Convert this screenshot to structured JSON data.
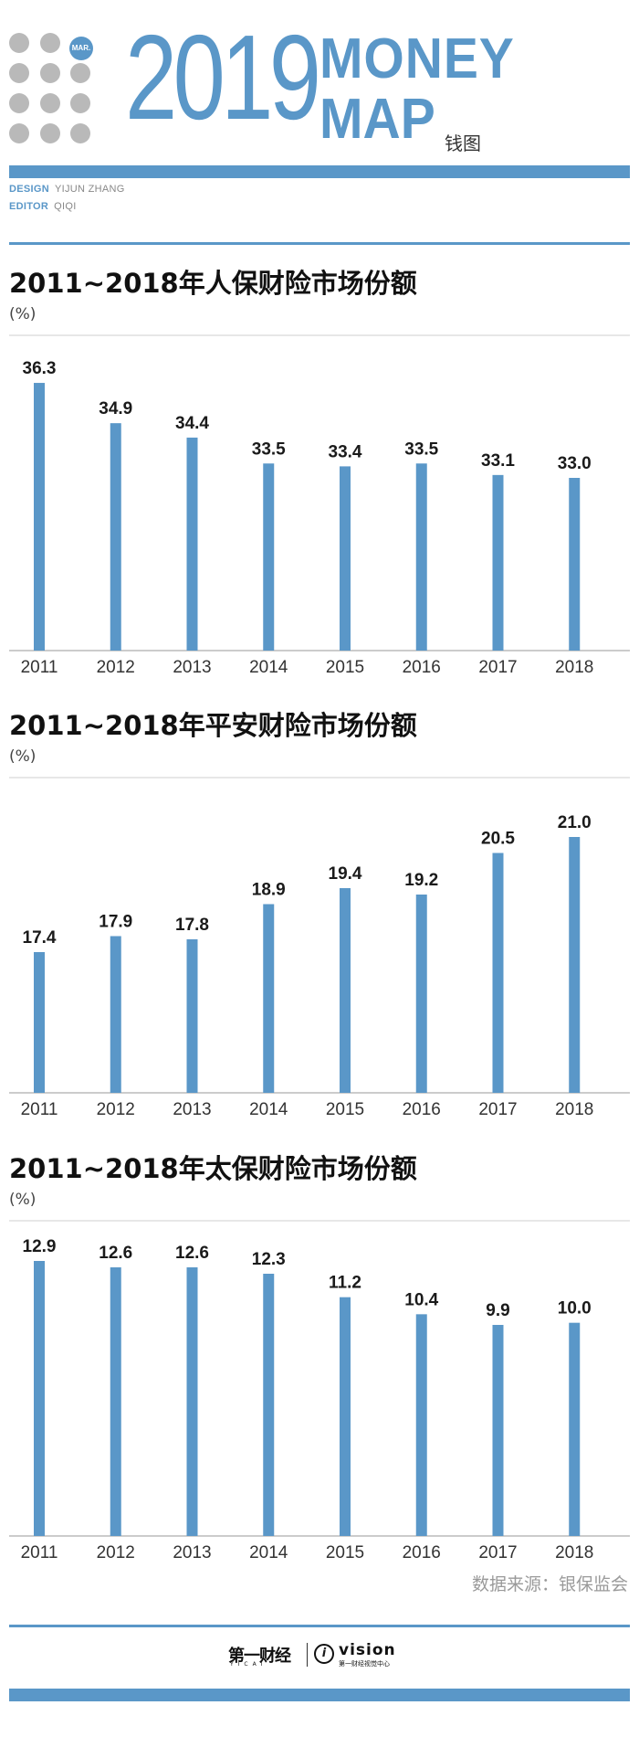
{
  "header": {
    "badge": "MAR.",
    "year": "2019",
    "word1": "MONEY",
    "word2": "MAP",
    "cn_title": "钱图",
    "design_label": "DESIGN",
    "design_value": "YIJUN ZHANG",
    "editor_label": "EDITOR",
    "editor_value": "QIQI"
  },
  "colors": {
    "accent": "#5a97c8",
    "bar": "#5a97c8",
    "text": "#1a1a1a"
  },
  "chart_data": [
    {
      "type": "bar",
      "title": "2011~2018年人保财险市场份额",
      "unit": "(%)",
      "categories": [
        "2011",
        "2012",
        "2013",
        "2014",
        "2015",
        "2016",
        "2017",
        "2018"
      ],
      "values": [
        36.3,
        34.9,
        34.4,
        33.5,
        33.4,
        33.5,
        33.1,
        33.0
      ],
      "value_labels": [
        "36.3",
        "34.9",
        "34.4",
        "33.5",
        "33.4",
        "33.5",
        "33.1",
        "33.0"
      ],
      "ylim": [
        27,
        37
      ]
    },
    {
      "type": "bar",
      "title": "2011~2018年平安财险市场份额",
      "unit": "(%)",
      "categories": [
        "2011",
        "2012",
        "2013",
        "2014",
        "2015",
        "2016",
        "2017",
        "2018"
      ],
      "values": [
        17.4,
        17.9,
        17.8,
        18.9,
        19.4,
        19.2,
        20.5,
        21.0
      ],
      "value_labels": [
        "17.4",
        "17.9",
        "17.8",
        "18.9",
        "19.4",
        "19.2",
        "20.5",
        "21.0"
      ],
      "ylim": [
        13,
        22
      ]
    },
    {
      "type": "bar",
      "title": "2011~2018年太保财险市场份额",
      "unit": "(%)",
      "categories": [
        "2011",
        "2012",
        "2013",
        "2014",
        "2015",
        "2016",
        "2017",
        "2018"
      ],
      "values": [
        12.9,
        12.6,
        12.6,
        12.3,
        11.2,
        10.4,
        9.9,
        10.0
      ],
      "value_labels": [
        "12.9",
        "12.6",
        "12.6",
        "12.3",
        "11.2",
        "10.4",
        "9.9",
        "10.0"
      ],
      "ylim": [
        0,
        13.5
      ]
    }
  ],
  "source": "数据来源：银保监会",
  "footer": {
    "logo1": "第一财经",
    "logo1_sub": "YICAI",
    "logo2": "vision",
    "logo2_sub": "第一财经视觉中心"
  }
}
